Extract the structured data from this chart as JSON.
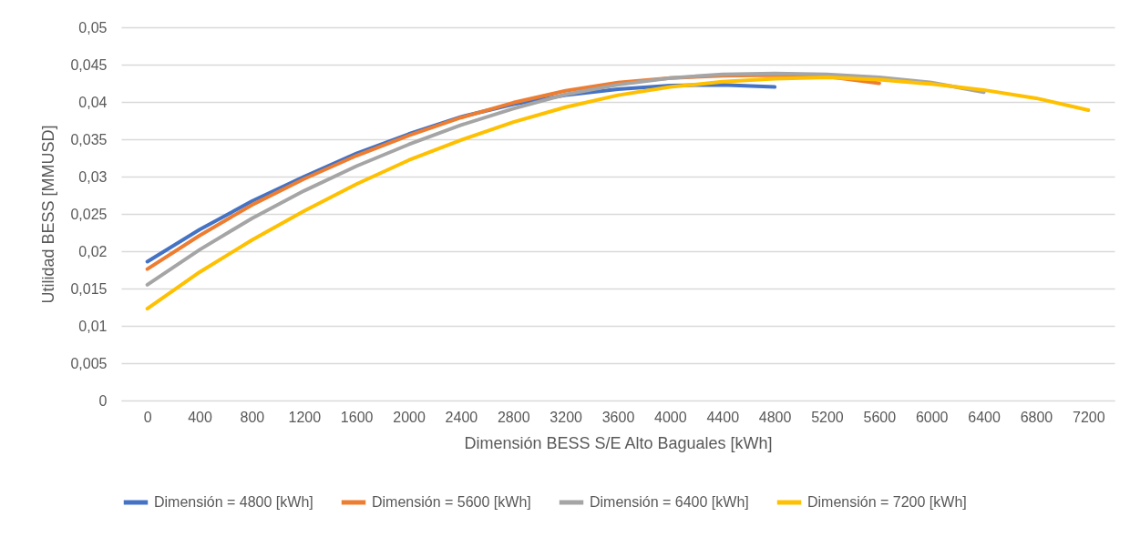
{
  "chart_data": {
    "type": "line",
    "xlabel": "Dimensión BESS S/E Alto Baguales [kWh]",
    "ylabel": "Utilidad BESS [MMUSD]",
    "categories": [
      "0",
      "400",
      "800",
      "1200",
      "1600",
      "2000",
      "2400",
      "2800",
      "3200",
      "3600",
      "4000",
      "4400",
      "4800",
      "5200",
      "5600",
      "6000",
      "6400",
      "6800",
      "7200"
    ],
    "series": [
      {
        "name": "Dimensión = 4800 [kWh]",
        "color": "#4472c4",
        "values": [
          0.0186,
          0.0229,
          0.0267,
          0.03,
          0.0331,
          0.0357,
          0.038,
          0.0397,
          0.0409,
          0.0417,
          0.0422,
          0.0423,
          0.042,
          null,
          null,
          null,
          null,
          null,
          null
        ]
      },
      {
        "name": "Dimensión = 5600 [kWh]",
        "color": "#ed7d31",
        "values": [
          0.0176,
          0.0221,
          0.0262,
          0.0297,
          0.0328,
          0.0355,
          0.0379,
          0.0399,
          0.0415,
          0.0426,
          0.0432,
          0.0435,
          0.0436,
          0.0434,
          0.0425,
          null,
          null,
          null,
          null
        ]
      },
      {
        "name": "Dimensión = 6400 [kWh]",
        "color": "#a5a5a5",
        "values": [
          0.0155,
          0.0202,
          0.0244,
          0.0281,
          0.0314,
          0.0343,
          0.0369,
          0.0391,
          0.041,
          0.0423,
          0.0432,
          0.0437,
          0.0438,
          0.0437,
          0.0433,
          0.0426,
          0.0413,
          null,
          null
        ]
      },
      {
        "name": "Dimensión = 7200 [kWh]",
        "color": "#ffc000",
        "values": [
          0.0123,
          0.0172,
          0.0215,
          0.0254,
          0.029,
          0.0322,
          0.0349,
          0.0373,
          0.0393,
          0.0409,
          0.042,
          0.0427,
          0.0431,
          0.0433,
          0.043,
          0.0424,
          0.0416,
          0.0405,
          0.0389
        ]
      }
    ],
    "ylim": [
      0,
      0.05
    ],
    "yticks": [
      0,
      {
        "value": 0.005,
        "label": "0,005"
      },
      {
        "value": 0.01,
        "label": "0,01"
      },
      {
        "value": 0.015,
        "label": "0,015"
      },
      {
        "value": 0.02,
        "label": "0,02"
      },
      {
        "value": 0.025,
        "label": "0,025"
      },
      {
        "value": 0.03,
        "label": "0,03"
      },
      {
        "value": 0.035,
        "label": "0,035"
      },
      {
        "value": 0.04,
        "label": "0,04"
      },
      {
        "value": 0.045,
        "label": "0,045"
      },
      {
        "value": 0.05,
        "label": "0,05"
      }
    ],
    "grid": "y",
    "legend": "bottom",
    "marker": "none",
    "line_style": "solid"
  }
}
